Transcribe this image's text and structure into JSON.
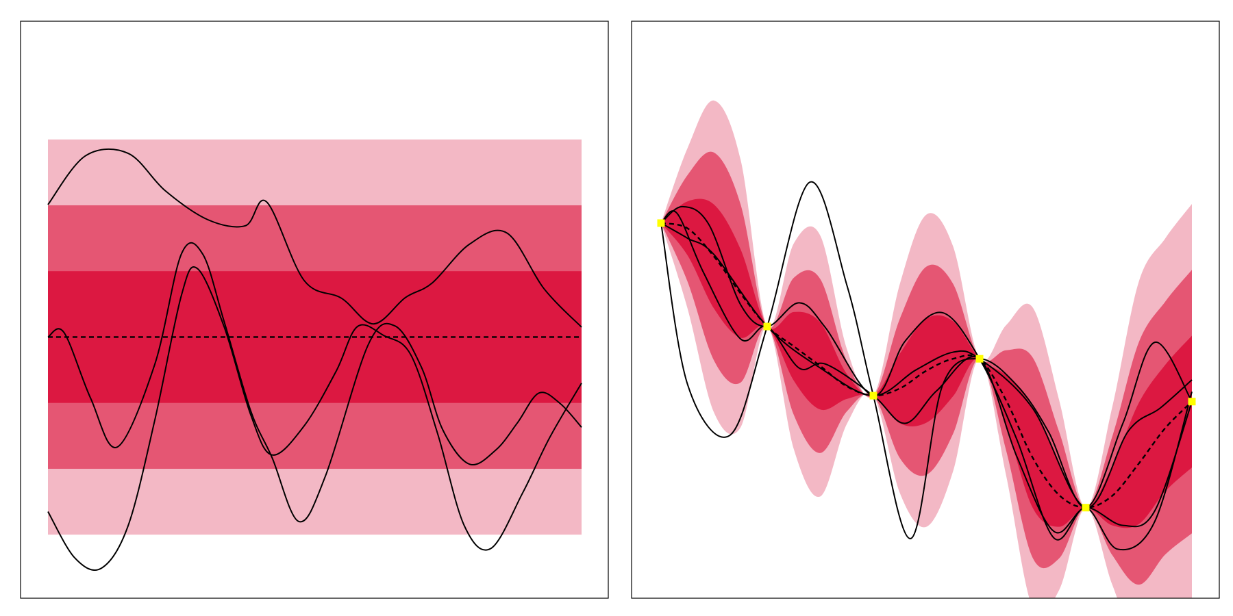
{
  "colors": {
    "band_outer": "#f3b8c5",
    "band_middle": "#e55673",
    "band_inner": "#dc1841",
    "sample_line": "#000000",
    "mean_line": "#000000",
    "observation": "#ffff00",
    "frame": "#000000"
  },
  "chart_data": [
    {
      "type": "line",
      "title": "",
      "xlabel": "",
      "ylabel": "",
      "xlim": [
        0,
        1
      ],
      "ylim": [
        -3.57,
        4.4
      ],
      "grid": false,
      "legend": "none",
      "mean": {
        "x": [
          0,
          1
        ],
        "y": [
          0,
          0
        ]
      },
      "bands": [
        {
          "sigma": 1,
          "lower": -1,
          "upper": 1
        },
        {
          "sigma": 2,
          "lower": -2,
          "upper": 2
        },
        {
          "sigma": 3,
          "lower": -3,
          "upper": 3
        }
      ],
      "series": [
        {
          "x": [
            0,
            0.07,
            0.15,
            0.22,
            0.3,
            0.37,
            0.41,
            0.48,
            0.55,
            0.61,
            0.67,
            0.72,
            0.79,
            0.86,
            0.93,
            1
          ],
          "y": [
            2.01,
            2.75,
            2.79,
            2.22,
            1.78,
            1.69,
            2.05,
            0.86,
            0.59,
            0.2,
            0.6,
            0.82,
            1.41,
            1.58,
            0.73,
            0.15
          ]
        },
        {
          "x": [
            0,
            0.03,
            0.08,
            0.13,
            0.2,
            0.25,
            0.29,
            0.33,
            0.38,
            0.42,
            0.47,
            0.52,
            0.6,
            0.65,
            0.7,
            0.74,
            0.79,
            0.84,
            0.88,
            0.92,
            0.96,
            1
          ],
          "y": [
            0,
            0.07,
            -0.93,
            -1.67,
            -0.42,
            1.26,
            1.26,
            0.24,
            -1.12,
            -1.83,
            -2.8,
            -2.11,
            -0.12,
            0.17,
            -0.46,
            -1.41,
            -1.93,
            -1.71,
            -1.3,
            -0.85,
            -1.01,
            -1.37
          ]
        },
        {
          "x": [
            0,
            0.05,
            0.1,
            0.15,
            0.2,
            0.25,
            0.28,
            0.33,
            0.38,
            0.42,
            0.48,
            0.54,
            0.58,
            0.63,
            0.68,
            0.73,
            0.78,
            0.83,
            0.89,
            0.94,
            1
          ],
          "y": [
            -2.65,
            -3.35,
            -3.51,
            -2.87,
            -1.27,
            0.63,
            1.04,
            0.16,
            -1.18,
            -1.79,
            -1.35,
            -0.52,
            0.16,
            0.02,
            -0.27,
            -1.46,
            -2.86,
            -3.21,
            -2.36,
            -1.53,
            -0.7
          ]
        }
      ]
    },
    {
      "type": "line",
      "title": "",
      "xlabel": "",
      "ylabel": "",
      "xlim": [
        0,
        1
      ],
      "ylim": [
        -3.57,
        4.4
      ],
      "grid": false,
      "legend": "none",
      "observations": {
        "x": [
          0,
          0.2,
          0.4,
          0.6,
          0.8,
          1
        ],
        "y": [
          1.73,
          0.16,
          -0.89,
          -0.33,
          -2.59,
          -0.98
        ]
      },
      "mean": {
        "x": [
          0,
          0.05,
          0.1,
          0.15,
          0.2,
          0.25,
          0.3,
          0.35,
          0.4,
          0.45,
          0.5,
          0.55,
          0.6,
          0.65,
          0.7,
          0.75,
          0.8,
          0.85,
          0.9,
          0.95,
          1
        ],
        "y": [
          1.73,
          1.65,
          1.22,
          0.66,
          0.16,
          -0.14,
          -0.44,
          -0.75,
          -0.89,
          -0.78,
          -0.51,
          -0.33,
          -0.33,
          -0.96,
          -1.83,
          -2.4,
          -2.59,
          -2.41,
          -1.92,
          -1.38,
          -0.98
        ]
      },
      "bands": [
        {
          "sigma": 1,
          "x": [
            0,
            0.05,
            0.1,
            0.15,
            0.2,
            0.25,
            0.3,
            0.35,
            0.4,
            0.45,
            0.5,
            0.55,
            0.6,
            0.65,
            0.7,
            0.75,
            0.8,
            0.85,
            0.9,
            0.95,
            1
          ],
          "lower": [
            1.73,
            1.24,
            0.43,
            -0.01,
            0.16,
            -0.66,
            -1.1,
            -0.94,
            -0.89,
            -1.31,
            -1.3,
            -0.9,
            -0.33,
            -1.34,
            -2.59,
            -2.88,
            -2.59,
            -2.86,
            -2.84,
            -2.34,
            -1.98
          ],
          "upper": [
            1.73,
            2.06,
            2.01,
            1.33,
            0.16,
            0.38,
            0.22,
            -0.56,
            -0.89,
            -0.25,
            0.28,
            0.24,
            -0.33,
            -0.58,
            -1.07,
            -1.92,
            -2.59,
            -1.96,
            -1.0,
            -0.42,
            0.02
          ]
        },
        {
          "sigma": 2,
          "x": [
            0,
            0.05,
            0.1,
            0.15,
            0.2,
            0.25,
            0.3,
            0.35,
            0.4,
            0.45,
            0.5,
            0.55,
            0.6,
            0.65,
            0.7,
            0.75,
            0.8,
            0.85,
            0.9,
            0.95,
            1
          ],
          "lower": [
            1.73,
            0.84,
            -0.36,
            -0.69,
            0.16,
            -1.18,
            -1.76,
            -1.13,
            -0.89,
            -1.84,
            -2.09,
            -1.47,
            -0.33,
            -1.72,
            -3.35,
            -3.36,
            -2.59,
            -3.31,
            -3.76,
            -3.3,
            -2.98
          ],
          "upper": [
            1.73,
            2.46,
            2.8,
            2.01,
            0.16,
            0.9,
            0.88,
            -0.37,
            -0.89,
            0.28,
            1.07,
            0.81,
            -0.33,
            -0.2,
            -0.31,
            -1.44,
            -2.59,
            -1.51,
            -0.08,
            0.54,
            1.02
          ]
        },
        {
          "sigma": 3,
          "x": [
            0,
            0.05,
            0.1,
            0.15,
            0.2,
            0.25,
            0.3,
            0.35,
            0.4,
            0.45,
            0.5,
            0.55,
            0.6,
            0.65,
            0.7,
            0.75,
            0.8,
            0.85,
            0.9,
            0.95,
            1
          ],
          "lower": [
            1.73,
            0.43,
            -1.15,
            -1.37,
            0.16,
            -1.7,
            -2.42,
            -1.32,
            -0.89,
            -2.37,
            -2.88,
            -2.04,
            -0.33,
            -2.1,
            -4.11,
            -3.84,
            -2.59,
            -3.76,
            -4.68,
            -4.26,
            -3.98
          ],
          "upper": [
            1.73,
            2.87,
            3.59,
            2.69,
            0.16,
            1.42,
            1.54,
            -0.18,
            -0.89,
            0.81,
            1.86,
            1.38,
            -0.33,
            0.18,
            0.45,
            -0.96,
            -2.59,
            -1.06,
            0.84,
            1.5,
            2.02
          ]
        }
      ],
      "series": [
        {
          "x": [
            0,
            0.05,
            0.13,
            0.2,
            0.28,
            0.35,
            0.4,
            0.47,
            0.53,
            0.6,
            0.67,
            0.73,
            0.8,
            0.87,
            0.93,
            1
          ],
          "y": [
            1.73,
            -0.72,
            -1.49,
            0.16,
            2.35,
            0.79,
            -0.89,
            -3.06,
            -0.74,
            -0.33,
            -0.73,
            -1.44,
            -2.59,
            -1.31,
            -0.08,
            -0.98
          ]
        },
        {
          "x": [
            0,
            0.04,
            0.09,
            0.15,
            0.2,
            0.26,
            0.31,
            0.4,
            0.46,
            0.53,
            0.6,
            0.67,
            0.74,
            0.8,
            0.86,
            0.93,
            1
          ],
          "y": [
            1.73,
            1.98,
            1.71,
            0.49,
            0.16,
            0.52,
            0.14,
            -0.89,
            -0.06,
            0.37,
            -0.33,
            -1.55,
            -3.05,
            -2.59,
            -3.22,
            -2.8,
            -0.83
          ]
        },
        {
          "x": [
            0,
            0.03,
            0.08,
            0.15,
            0.2,
            0.26,
            0.31,
            0.4,
            0.46,
            0.52,
            0.6,
            0.67,
            0.74,
            0.8,
            0.87,
            0.93,
            1
          ],
          "y": [
            1.73,
            1.88,
            0.98,
            -0.03,
            0.16,
            -0.47,
            -0.41,
            -0.89,
            -1.31,
            -0.81,
            -0.33,
            -1.81,
            -2.95,
            -2.59,
            -2.86,
            -2.64,
            -0.98
          ]
        },
        {
          "x": [
            0,
            0.05,
            0.1,
            0.2,
            0.3,
            0.4,
            0.48,
            0.55,
            0.6,
            0.7,
            0.8,
            0.88,
            0.94,
            1
          ],
          "y": [
            1.73,
            1.5,
            1.25,
            0.16,
            -0.47,
            -0.89,
            -0.5,
            -0.23,
            -0.33,
            -1.08,
            -2.59,
            -1.43,
            -1.08,
            -0.65
          ]
        }
      ]
    }
  ]
}
